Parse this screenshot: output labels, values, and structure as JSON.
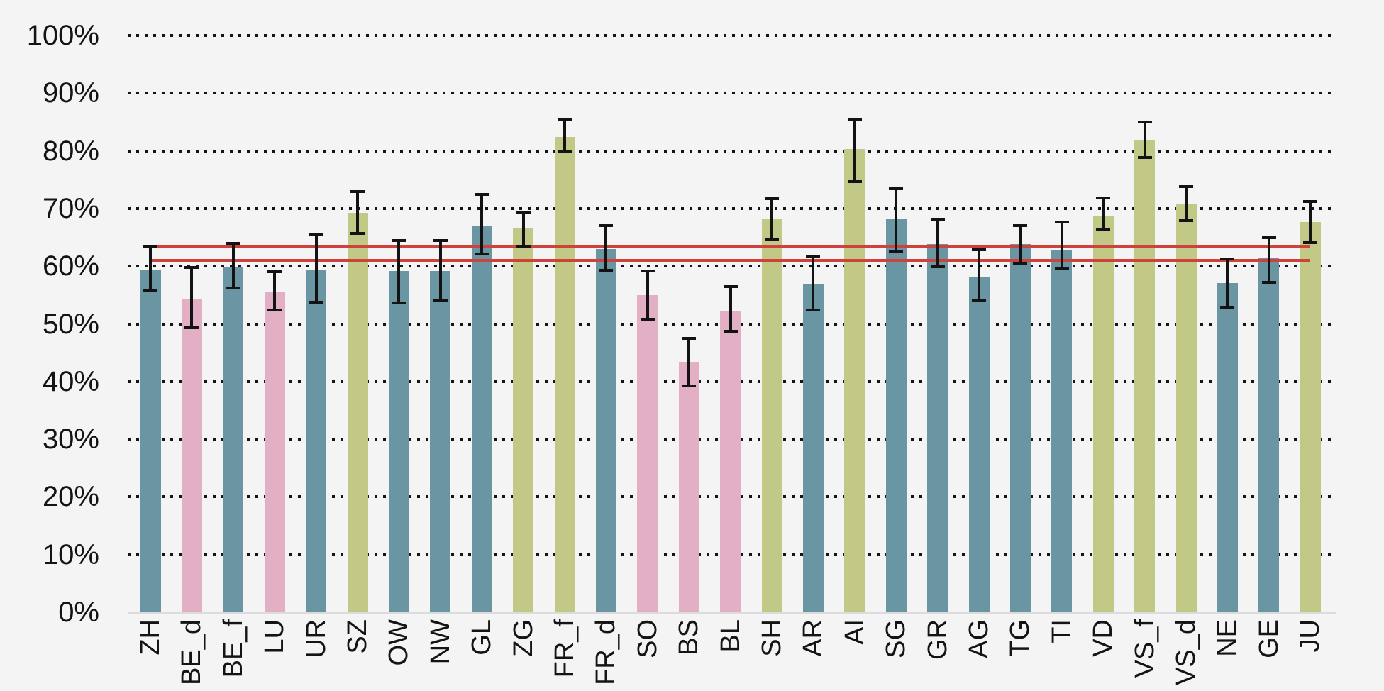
{
  "page": {
    "background_color": "#f4f4f4"
  },
  "chart_data": {
    "type": "bar",
    "title": "",
    "xlabel": "",
    "ylabel": "",
    "legend": "none",
    "grid": "horizontal-dotted",
    "ylim": [
      0,
      100
    ],
    "yticks": [
      0,
      10,
      20,
      30,
      40,
      50,
      60,
      70,
      80,
      90,
      100
    ],
    "ytick_labels": [
      "0%",
      "10%",
      "20%",
      "30%",
      "40%",
      "50%",
      "60%",
      "70%",
      "80%",
      "90%",
      "100%"
    ],
    "categories": [
      "ZH",
      "BE_d",
      "BE_f",
      "LU",
      "UR",
      "SZ",
      "OW",
      "NW",
      "GL",
      "ZG",
      "FR_f",
      "FR_d",
      "SO",
      "BS",
      "BL",
      "SH",
      "AR",
      "AI",
      "SG",
      "GR",
      "AG",
      "TG",
      "TI",
      "VD",
      "VS_f",
      "VS_d",
      "NE",
      "GE",
      "JU"
    ],
    "values": [
      59.3,
      54.4,
      59.8,
      55.6,
      59.3,
      69.3,
      59.2,
      59.2,
      67.0,
      66.6,
      82.4,
      63.0,
      55.0,
      43.4,
      52.3,
      68.2,
      57.0,
      80.3,
      68.2,
      63.9,
      58.1,
      63.9,
      62.9,
      68.7,
      81.9,
      70.8,
      57.1,
      61.4,
      67.7
    ],
    "error_low": [
      55.9,
      49.3,
      56.2,
      52.4,
      53.7,
      65.7,
      53.6,
      54.1,
      62.1,
      63.5,
      80.0,
      59.3,
      50.8,
      39.2,
      48.7,
      64.6,
      52.4,
      74.7,
      62.5,
      59.9,
      54.0,
      60.5,
      59.7,
      66.3,
      78.9,
      67.9,
      52.9,
      57.2,
      64.1
    ],
    "error_high": [
      63.4,
      59.8,
      64.0,
      59.1,
      65.6,
      72.9,
      64.5,
      64.5,
      72.4,
      69.2,
      85.5,
      67.0,
      59.2,
      47.5,
      56.5,
      71.7,
      61.8,
      85.5,
      73.4,
      68.2,
      62.8,
      67.0,
      67.6,
      71.8,
      85.0,
      73.8,
      61.2,
      65.0,
      71.2
    ],
    "bar_color_keys": [
      "teal",
      "pink",
      "teal",
      "pink",
      "teal",
      "olive",
      "teal",
      "teal",
      "teal",
      "olive",
      "olive",
      "teal",
      "pink",
      "pink",
      "pink",
      "olive",
      "teal",
      "olive",
      "teal",
      "teal",
      "teal",
      "teal",
      "teal",
      "olive",
      "olive",
      "olive",
      "teal",
      "teal",
      "olive"
    ],
    "palette": {
      "teal": "#6a96a4",
      "pink": "#e2afc5",
      "olive": "#c2c987"
    },
    "reference_lines": [
      {
        "name": "upper-mean-line",
        "value": 63.3,
        "color": "#ce423b"
      },
      {
        "name": "lower-mean-line",
        "value": 61.0,
        "color": "#ce423b"
      }
    ],
    "colors": {
      "error_bar": "#131313",
      "grid_dots": "#141414",
      "axis_baseline": "#dcdcdc",
      "tick_text": "#141414",
      "background": "#f4f4f4"
    }
  }
}
